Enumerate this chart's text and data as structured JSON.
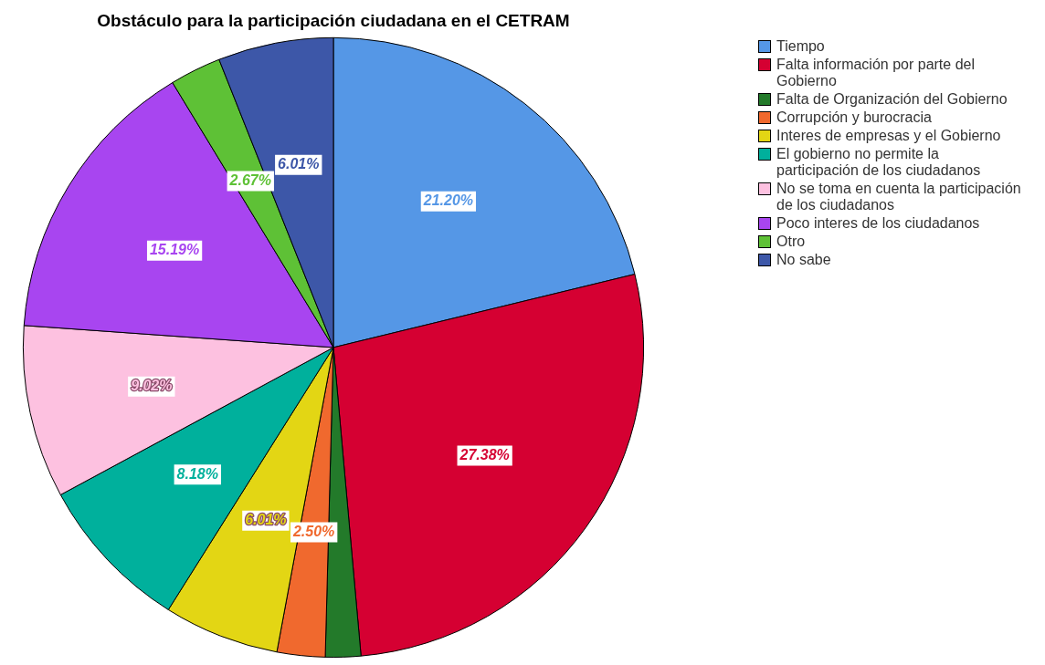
{
  "chart_data": {
    "type": "pie",
    "title": "Obstáculo para la participación ciudadana en el CETRAM",
    "categories": [
      "Tiempo",
      "Falta información  por parte del Gobierno",
      "Falta de Organización del Gobierno",
      "Corrupción y burocracia",
      "Interes de empresas y el Gobierno",
      "El gobierno no permite la participación de los ciudadanos",
      "No se toma en cuenta la participación de los ciudadanos",
      "Poco interes de los ciudadanos",
      "Otro",
      "No sabe"
    ],
    "values": [
      21.2,
      27.38,
      1.84,
      2.5,
      6.01,
      8.18,
      9.02,
      15.19,
      2.67,
      6.01
    ],
    "value_labels": [
      "21.20%",
      "27.38%",
      null,
      "2.50%",
      "6.01%",
      "8.18%",
      "9.02%",
      "15.19%",
      "2.67%",
      "6.01%"
    ],
    "colors": [
      "#5597e6",
      "#d50032",
      "#237a2a",
      "#f0692e",
      "#e3d614",
      "#00b09c",
      "#fdc1e0",
      "#a845f0",
      "#5ec136",
      "#3d57a8"
    ],
    "legend": "right"
  }
}
